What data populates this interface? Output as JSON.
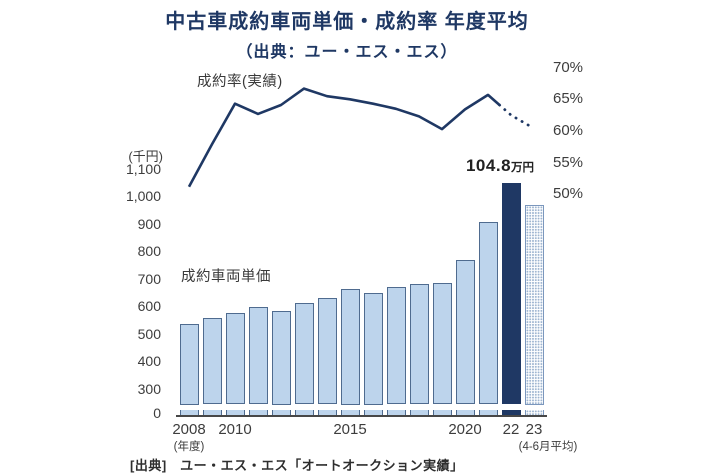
{
  "chart_data": {
    "type": "combo-bar-line",
    "title": "中古車成約車両単価・成約率 年度平均",
    "subtitle": "（出典：ユー・エス・エス）",
    "years": [
      "2008",
      "2009",
      "2010",
      "2011",
      "2012",
      "2013",
      "2014",
      "2015",
      "2016",
      "2017",
      "2018",
      "2019",
      "2020",
      "2021",
      "2022",
      "2023"
    ],
    "bar_series_name": "成約車両単価",
    "bar_unit": "千円",
    "bar_values": [
      535,
      557,
      577,
      597,
      585,
      614,
      632,
      665,
      650,
      672,
      683,
      686,
      768,
      907,
      1048,
      970
    ],
    "line_series_name": "成約率(実績)",
    "line_unit": "%",
    "line_values": [
      51.3,
      58.0,
      64.4,
      62.8,
      64.2,
      66.8,
      65.6,
      65.1,
      64.4,
      63.6,
      62.4,
      60.4,
      63.5,
      65.8,
      62.6,
      60.5
    ],
    "line_dotted_from_year": "2022",
    "highlight_year": "2022",
    "pattern_year": "2023",
    "annotation": {
      "value": "104.8",
      "unit": "万円",
      "year": "2022"
    },
    "left_axis": {
      "unit": "(千円)",
      "tick_values": [
        1100,
        1000,
        900,
        800,
        700,
        600,
        500,
        400,
        300,
        0
      ],
      "tick_labels": [
        "1,100",
        "1,000",
        "900",
        "800",
        "700",
        "600",
        "500",
        "400",
        "300",
        "0"
      ],
      "has_break": true,
      "range_shown": [
        300,
        1100
      ]
    },
    "right_axis": {
      "tick_values": [
        70,
        65,
        60,
        55,
        50
      ],
      "tick_labels": [
        "70%",
        "65%",
        "60%",
        "55%",
        "50%"
      ],
      "range": [
        50,
        70
      ]
    },
    "x_ticks": [
      {
        "label": "2008",
        "year": "2008",
        "sub": "(年度)"
      },
      {
        "label": "2010",
        "year": "2010"
      },
      {
        "label": "2015",
        "year": "2015"
      },
      {
        "label": "2020",
        "year": "2020"
      },
      {
        "label": "22",
        "year": "2022"
      },
      {
        "label": "23",
        "year": "2023",
        "sub": "(4-6月平均)"
      }
    ],
    "grid": false,
    "legend": "inline-labels",
    "colors": {
      "bar_fill": "#bdd4ec",
      "bar_border": "#4f6b8f",
      "bar_highlight": "#1f3864",
      "pattern_border": "#7b97bd",
      "pattern_dot": "#9db4d0",
      "line": "#1f3864",
      "title_text": "#1f3864",
      "axis_text": "#3d3d3d"
    }
  },
  "labels": {
    "source": "[出典]　ユー・エス・エス「オートオークション実績」"
  }
}
